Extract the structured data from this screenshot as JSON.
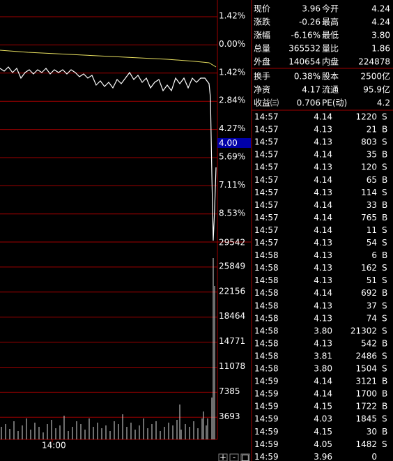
{
  "chart_axis": {
    "price_labels": [
      {
        "text": "1.42%",
        "color": "#ff4040"
      },
      {
        "text": "0.00%",
        "color": "#ffffff"
      },
      {
        "text": "1.42%",
        "color": "#00e000"
      },
      {
        "text": "2.84%",
        "color": "#00e000"
      },
      {
        "text": "4.27%",
        "color": "#00e000"
      },
      {
        "text": "5.69%",
        "color": "#00e000"
      },
      {
        "text": "7.11%",
        "color": "#00e000"
      },
      {
        "text": "8.53%",
        "color": "#00e000"
      }
    ],
    "current_price_label": "4.00",
    "volume_labels": [
      "29542",
      "25849",
      "22156",
      "18464",
      "14771",
      "11078",
      "7385",
      "3693"
    ],
    "time_label": "14:00",
    "buttons": [
      "+",
      "-",
      "□"
    ]
  },
  "quote": {
    "rows": [
      [
        {
          "text": "现价"
        },
        {
          "text": "3.96",
          "color": "#00e000"
        },
        {
          "text": "今开"
        },
        {
          "text": "4.24",
          "color": "#ff4040"
        }
      ],
      [
        {
          "text": "涨跌"
        },
        {
          "text": "-0.26",
          "color": "#00e000"
        },
        {
          "text": "最高"
        },
        {
          "text": "4.24",
          "color": "#ff4040"
        }
      ],
      [
        {
          "text": "涨幅"
        },
        {
          "text": "-6.16%",
          "color": "#00e000"
        },
        {
          "text": "最低"
        },
        {
          "text": "3.80",
          "color": "#00e000"
        }
      ],
      [
        {
          "text": "总量"
        },
        {
          "text": "365532",
          "color": "#e8e060"
        },
        {
          "text": "量比"
        },
        {
          "text": "1.86",
          "color": "#ff4040"
        }
      ],
      [
        {
          "text": "外盘"
        },
        {
          "text": "140654",
          "color": "#ff4040"
        },
        {
          "text": "内盘"
        },
        {
          "text": "224878",
          "color": "#00e000"
        }
      ],
      [
        {
          "text": "换手"
        },
        {
          "text": "0.38%",
          "color": "#ffffff"
        },
        {
          "text": "股本"
        },
        {
          "text": "2500亿",
          "color": "#ffffff"
        }
      ],
      [
        {
          "text": "净资"
        },
        {
          "text": "4.17",
          "color": "#ffffff"
        },
        {
          "text": "流通"
        },
        {
          "text": "95.9亿",
          "color": "#ffffff"
        }
      ],
      [
        {
          "text": "收益㈢"
        },
        {
          "text": "0.706",
          "color": "#ffffff"
        },
        {
          "text": "PE(动)"
        },
        {
          "text": "4.2",
          "color": "#ffffff"
        }
      ]
    ]
  },
  "trades": [
    {
      "time": "14:57",
      "price": "4.14",
      "volume": "1220",
      "side": "S",
      "volume_color": "#ff30ff"
    },
    {
      "time": "14:57",
      "price": "4.13",
      "volume": "21",
      "side": "B",
      "volume_color": "#e8e060"
    },
    {
      "time": "14:57",
      "price": "4.13",
      "volume": "803",
      "side": "S",
      "volume_color": "#ff30ff"
    },
    {
      "time": "14:57",
      "price": "4.14",
      "volume": "35",
      "side": "B",
      "volume_color": "#e8e060"
    },
    {
      "time": "14:57",
      "price": "4.13",
      "volume": "120",
      "side": "S",
      "volume_color": "#e8e060"
    },
    {
      "time": "14:57",
      "price": "4.14",
      "volume": "65",
      "side": "B",
      "volume_color": "#e8e060"
    },
    {
      "time": "14:57",
      "price": "4.13",
      "volume": "114",
      "side": "S",
      "volume_color": "#e8e060"
    },
    {
      "time": "14:57",
      "price": "4.14",
      "volume": "33",
      "side": "B",
      "volume_color": "#e8e060"
    },
    {
      "time": "14:57",
      "price": "4.14",
      "volume": "765",
      "side": "B",
      "volume_color": "#ff30ff"
    },
    {
      "time": "14:57",
      "price": "4.14",
      "volume": "11",
      "side": "S",
      "volume_color": "#e8e060"
    },
    {
      "time": "14:57",
      "price": "4.13",
      "volume": "54",
      "side": "S",
      "volume_color": "#e8e060"
    },
    {
      "time": "14:58",
      "price": "4.13",
      "volume": "6",
      "side": "B",
      "volume_color": "#e8e060"
    },
    {
      "time": "14:58",
      "price": "4.13",
      "volume": "162",
      "side": "S",
      "volume_color": "#e8e060"
    },
    {
      "time": "14:58",
      "price": "4.13",
      "volume": "51",
      "side": "S",
      "volume_color": "#e8e060"
    },
    {
      "time": "14:58",
      "price": "4.14",
      "volume": "692",
      "side": "B",
      "volume_color": "#ff30ff"
    },
    {
      "time": "14:58",
      "price": "4.13",
      "volume": "37",
      "side": "S",
      "volume_color": "#e8e060"
    },
    {
      "time": "14:58",
      "price": "4.13",
      "volume": "74",
      "side": "S",
      "volume_color": "#e8e060"
    },
    {
      "time": "14:58",
      "price": "3.80",
      "volume": "21302",
      "side": "S",
      "volume_color": "#ff30ff"
    },
    {
      "time": "14:58",
      "price": "4.13",
      "volume": "542",
      "side": "B",
      "volume_color": "#ff30ff"
    },
    {
      "time": "14:58",
      "price": "3.81",
      "volume": "2486",
      "side": "S",
      "volume_color": "#ff30ff"
    },
    {
      "time": "14:58",
      "price": "3.80",
      "volume": "1504",
      "side": "S",
      "volume_color": "#ff30ff"
    },
    {
      "time": "14:59",
      "price": "4.14",
      "volume": "3121",
      "side": "B",
      "volume_color": "#ff30ff"
    },
    {
      "time": "14:59",
      "price": "4.14",
      "volume": "1700",
      "side": "B",
      "volume_color": "#ff30ff"
    },
    {
      "time": "14:59",
      "price": "4.15",
      "volume": "1722",
      "side": "B",
      "volume_color": "#ff30ff"
    },
    {
      "time": "14:59",
      "price": "4.03",
      "volume": "1845",
      "side": "S",
      "volume_color": "#ff30ff"
    },
    {
      "time": "14:59",
      "price": "4.15",
      "volume": "30",
      "side": "B",
      "volume_color": "#e8e060"
    },
    {
      "time": "14:59",
      "price": "4.05",
      "volume": "1482",
      "side": "S",
      "volume_color": "#ff30ff"
    },
    {
      "time": "14:59",
      "price": "3.96",
      "volume": "0",
      "volume_color": "#e8e060"
    }
  ]
}
